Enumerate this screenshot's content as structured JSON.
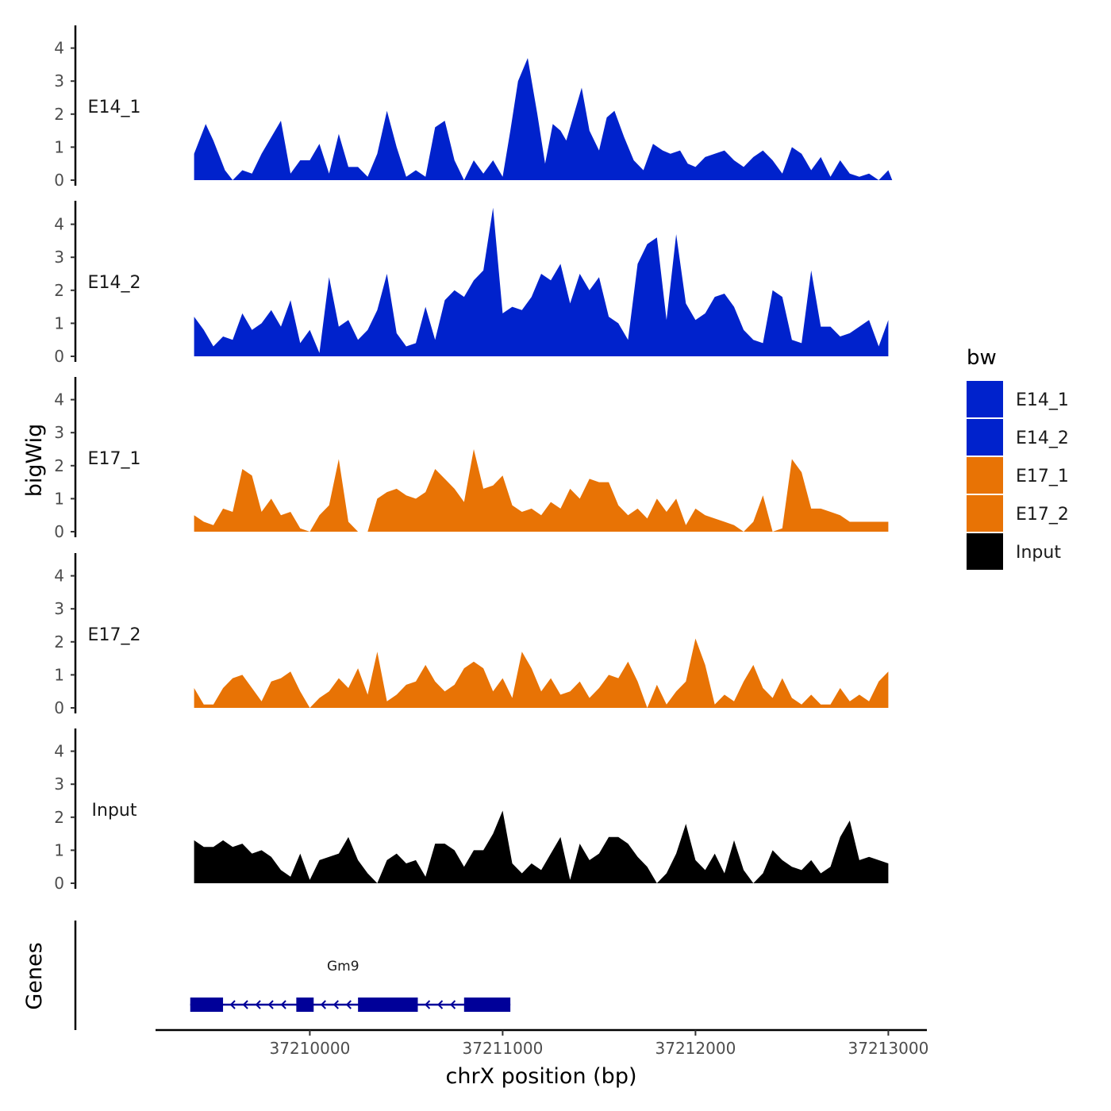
{
  "chart_data": {
    "type": "area",
    "ylabel": "bigWig",
    "xlabel": "chrX position (bp)",
    "chromosome": "chrX",
    "xlim": [
      37209200,
      37213200
    ],
    "ylim": [
      0,
      4.7
    ],
    "yticks": [
      "0",
      "1",
      "2",
      "3",
      "4"
    ],
    "xticks": [
      {
        "value": 37210000,
        "label": "37210000"
      },
      {
        "value": 37211000,
        "label": "37211000"
      },
      {
        "value": 37212000,
        "label": "37212000"
      },
      {
        "value": 37213000,
        "label": "37213000"
      }
    ],
    "legend": {
      "title": "bw",
      "position": "right",
      "entries": [
        {
          "label": "E14_1",
          "color": "#0022CC"
        },
        {
          "label": "E14_2",
          "color": "#0022CC"
        },
        {
          "label": "E17_1",
          "color": "#E87305"
        },
        {
          "label": "E17_2",
          "color": "#E87305"
        },
        {
          "label": "Input",
          "color": "#000000"
        }
      ]
    },
    "series": [
      {
        "name": "E14_1",
        "color": "#0022CC",
        "x": [
          37209400,
          37209460,
          37209500,
          37209560,
          37209600,
          37209650,
          37209700,
          37209750,
          37209800,
          37209850,
          37209900,
          37209950,
          37210000,
          37210050,
          37210100,
          37210150,
          37210200,
          37210250,
          37210300,
          37210350,
          37210400,
          37210450,
          37210500,
          37210550,
          37210600,
          37210650,
          37210700,
          37210750,
          37210800,
          37210850,
          37210900,
          37210950,
          37211000,
          37211040,
          37211080,
          37211130,
          37211180,
          37211220,
          37211260,
          37211300,
          37211330,
          37211370,
          37211410,
          37211450,
          37211500,
          37211540,
          37211580,
          37211630,
          37211680,
          37211730,
          37211780,
          37211830,
          37211870,
          37211920,
          37211960,
          37212000,
          37212050,
          37212100,
          37212150,
          37212200,
          37212250,
          37212300,
          37212350,
          37212400,
          37212450,
          37212500,
          37212550,
          37212600,
          37212650,
          37212700,
          37212750,
          37212800,
          37212850,
          37212900,
          37212950,
          37213000,
          37213020
        ],
        "values": [
          0.8,
          1.7,
          1.2,
          0.3,
          0.0,
          0.3,
          0.2,
          0.8,
          1.3,
          1.8,
          0.2,
          0.6,
          0.6,
          1.1,
          0.2,
          1.4,
          0.4,
          0.4,
          0.1,
          0.8,
          2.1,
          1.0,
          0.1,
          0.3,
          0.1,
          1.6,
          1.8,
          0.6,
          0.0,
          0.6,
          0.2,
          0.6,
          0.1,
          1.5,
          3.0,
          3.7,
          2.0,
          0.5,
          1.7,
          1.5,
          1.2,
          2.0,
          2.8,
          1.5,
          0.9,
          1.9,
          2.1,
          1.3,
          0.6,
          0.3,
          1.1,
          0.9,
          0.8,
          0.9,
          0.5,
          0.4,
          0.7,
          0.8,
          0.9,
          0.6,
          0.4,
          0.7,
          0.9,
          0.6,
          0.2,
          1.0,
          0.8,
          0.3,
          0.7,
          0.1,
          0.6,
          0.2,
          0.1,
          0.2,
          0.0,
          0.3,
          0.0
        ]
      },
      {
        "name": "E14_2",
        "color": "#0022CC",
        "x": [
          37209400,
          37209450,
          37209500,
          37209550,
          37209600,
          37209650,
          37209700,
          37209750,
          37209800,
          37209850,
          37209900,
          37209950,
          37210000,
          37210050,
          37210100,
          37210150,
          37210200,
          37210250,
          37210300,
          37210350,
          37210400,
          37210450,
          37210500,
          37210550,
          37210600,
          37210650,
          37210700,
          37210750,
          37210800,
          37210850,
          37210900,
          37210950,
          37211000,
          37211050,
          37211100,
          37211150,
          37211200,
          37211250,
          37211300,
          37211350,
          37211400,
          37211450,
          37211500,
          37211550,
          37211600,
          37211650,
          37211700,
          37211750,
          37211800,
          37211850,
          37211900,
          37211950,
          37212000,
          37212050,
          37212100,
          37212150,
          37212200,
          37212250,
          37212300,
          37212350,
          37212400,
          37212450,
          37212500,
          37212550,
          37212600,
          37212650,
          37212700,
          37212750,
          37212800,
          37212850,
          37212900,
          37212950,
          37213000
        ],
        "values": [
          1.2,
          0.8,
          0.3,
          0.6,
          0.5,
          1.3,
          0.8,
          1.0,
          1.4,
          0.9,
          1.7,
          0.4,
          0.8,
          0.1,
          2.4,
          0.9,
          1.1,
          0.5,
          0.8,
          1.4,
          2.5,
          0.7,
          0.3,
          0.4,
          1.5,
          0.5,
          1.7,
          2.0,
          1.8,
          2.3,
          2.6,
          4.5,
          1.3,
          1.5,
          1.4,
          1.8,
          2.5,
          2.3,
          2.8,
          1.6,
          2.5,
          2.0,
          2.4,
          1.2,
          1.0,
          0.5,
          2.8,
          3.4,
          3.6,
          1.1,
          3.7,
          1.6,
          1.1,
          1.3,
          1.8,
          1.9,
          1.5,
          0.8,
          0.5,
          0.4,
          2.0,
          1.8,
          0.5,
          0.4,
          2.6,
          0.9,
          0.9,
          0.6,
          0.7,
          0.9,
          1.1,
          0.3,
          1.1
        ]
      },
      {
        "name": "E17_1",
        "color": "#E87305",
        "x": [
          37209400,
          37209450,
          37209500,
          37209550,
          37209600,
          37209650,
          37209700,
          37209750,
          37209800,
          37209850,
          37209900,
          37209950,
          37210000,
          37210050,
          37210100,
          37210150,
          37210200,
          37210250,
          37210300,
          37210350,
          37210400,
          37210450,
          37210500,
          37210550,
          37210600,
          37210650,
          37210700,
          37210750,
          37210800,
          37210850,
          37210900,
          37210950,
          37211000,
          37211050,
          37211100,
          37211150,
          37211200,
          37211250,
          37211300,
          37211350,
          37211400,
          37211450,
          37211500,
          37211550,
          37211600,
          37211650,
          37211700,
          37211750,
          37211800,
          37211850,
          37211900,
          37211950,
          37212000,
          37212050,
          37212100,
          37212150,
          37212200,
          37212250,
          37212300,
          37212350,
          37212400,
          37212450,
          37212500,
          37212550,
          37212600,
          37212650,
          37212700,
          37212750,
          37212800,
          37212850,
          37212900,
          37212950,
          37213000
        ],
        "values": [
          0.5,
          0.3,
          0.2,
          0.7,
          0.6,
          1.9,
          1.7,
          0.6,
          1.0,
          0.5,
          0.6,
          0.1,
          0.0,
          0.5,
          0.8,
          2.2,
          0.3,
          0.0,
          0.0,
          1.0,
          1.2,
          1.3,
          1.1,
          1.0,
          1.2,
          1.9,
          1.6,
          1.3,
          0.9,
          2.5,
          1.3,
          1.4,
          1.7,
          0.8,
          0.6,
          0.7,
          0.5,
          0.9,
          0.7,
          1.3,
          1.0,
          1.6,
          1.5,
          1.5,
          0.8,
          0.5,
          0.7,
          0.4,
          1.0,
          0.6,
          1.0,
          0.2,
          0.7,
          0.5,
          0.4,
          0.3,
          0.2,
          0.0,
          0.3,
          1.1,
          0.0,
          0.1,
          2.2,
          1.8,
          0.7,
          0.7,
          0.6,
          0.5,
          0.3,
          0.3,
          0.3,
          0.3,
          0.3
        ]
      },
      {
        "name": "E17_2",
        "color": "#E87305",
        "x": [
          37209400,
          37209450,
          37209500,
          37209550,
          37209600,
          37209650,
          37209700,
          37209750,
          37209800,
          37209850,
          37209900,
          37209950,
          37210000,
          37210050,
          37210100,
          37210150,
          37210200,
          37210250,
          37210300,
          37210350,
          37210400,
          37210450,
          37210500,
          37210550,
          37210600,
          37210650,
          37210700,
          37210750,
          37210800,
          37210850,
          37210900,
          37210950,
          37211000,
          37211050,
          37211100,
          37211150,
          37211200,
          37211250,
          37211300,
          37211350,
          37211400,
          37211450,
          37211500,
          37211550,
          37211600,
          37211650,
          37211700,
          37211750,
          37211800,
          37211850,
          37211900,
          37211950,
          37212000,
          37212050,
          37212100,
          37212150,
          37212200,
          37212250,
          37212300,
          37212350,
          37212400,
          37212450,
          37212500,
          37212550,
          37212600,
          37212650,
          37212700,
          37212750,
          37212800,
          37212850,
          37212900,
          37212950,
          37213000
        ],
        "values": [
          0.6,
          0.1,
          0.1,
          0.6,
          0.9,
          1.0,
          0.6,
          0.2,
          0.8,
          0.9,
          1.1,
          0.5,
          0.0,
          0.3,
          0.5,
          0.9,
          0.6,
          1.2,
          0.4,
          1.7,
          0.2,
          0.4,
          0.7,
          0.8,
          1.3,
          0.8,
          0.5,
          0.7,
          1.2,
          1.4,
          1.2,
          0.5,
          0.9,
          0.3,
          1.7,
          1.2,
          0.5,
          0.9,
          0.4,
          0.5,
          0.8,
          0.3,
          0.6,
          1.0,
          0.9,
          1.4,
          0.8,
          0.0,
          0.7,
          0.1,
          0.5,
          0.8,
          2.1,
          1.3,
          0.1,
          0.4,
          0.2,
          0.8,
          1.3,
          0.6,
          0.3,
          0.9,
          0.3,
          0.1,
          0.4,
          0.1,
          0.1,
          0.6,
          0.2,
          0.4,
          0.2,
          0.8,
          1.1
        ]
      },
      {
        "name": "Input",
        "color": "#000000",
        "x": [
          37209400,
          37209450,
          37209500,
          37209550,
          37209600,
          37209650,
          37209700,
          37209750,
          37209800,
          37209850,
          37209900,
          37209950,
          37210000,
          37210050,
          37210100,
          37210150,
          37210200,
          37210250,
          37210300,
          37210350,
          37210400,
          37210450,
          37210500,
          37210550,
          37210600,
          37210650,
          37210700,
          37210750,
          37210800,
          37210850,
          37210900,
          37210950,
          37211000,
          37211050,
          37211100,
          37211150,
          37211200,
          37211250,
          37211300,
          37211350,
          37211400,
          37211450,
          37211500,
          37211550,
          37211600,
          37211650,
          37211700,
          37211750,
          37211800,
          37211850,
          37211900,
          37211950,
          37212000,
          37212050,
          37212100,
          37212150,
          37212200,
          37212250,
          37212300,
          37212350,
          37212400,
          37212450,
          37212500,
          37212550,
          37212600,
          37212650,
          37212700,
          37212750,
          37212800,
          37212850,
          37212900,
          37212950,
          37213000
        ],
        "values": [
          1.3,
          1.1,
          1.1,
          1.3,
          1.1,
          1.2,
          0.9,
          1.0,
          0.8,
          0.4,
          0.2,
          0.9,
          0.1,
          0.7,
          0.8,
          0.9,
          1.4,
          0.7,
          0.3,
          0.0,
          0.7,
          0.9,
          0.6,
          0.7,
          0.2,
          1.2,
          1.2,
          1.0,
          0.5,
          1.0,
          1.0,
          1.5,
          2.2,
          0.6,
          0.3,
          0.6,
          0.4,
          0.9,
          1.4,
          0.1,
          1.2,
          0.7,
          0.9,
          1.4,
          1.4,
          1.2,
          0.8,
          0.5,
          0.0,
          0.3,
          0.9,
          1.8,
          0.7,
          0.4,
          0.9,
          0.3,
          1.3,
          0.4,
          0.0,
          0.3,
          1.0,
          0.7,
          0.5,
          0.4,
          0.7,
          0.3,
          0.5,
          1.4,
          1.9,
          0.7,
          0.8,
          0.7,
          0.6
        ]
      }
    ],
    "genes_track": {
      "label": "Genes",
      "gene": "Gm9",
      "strand": "-",
      "start": 37209380,
      "end": 37211040,
      "color": "#000099",
      "exons": [
        [
          37209380,
          37209550
        ],
        [
          37209930,
          37210020
        ],
        [
          37210250,
          37210560
        ],
        [
          37210800,
          37211040
        ]
      ]
    }
  }
}
